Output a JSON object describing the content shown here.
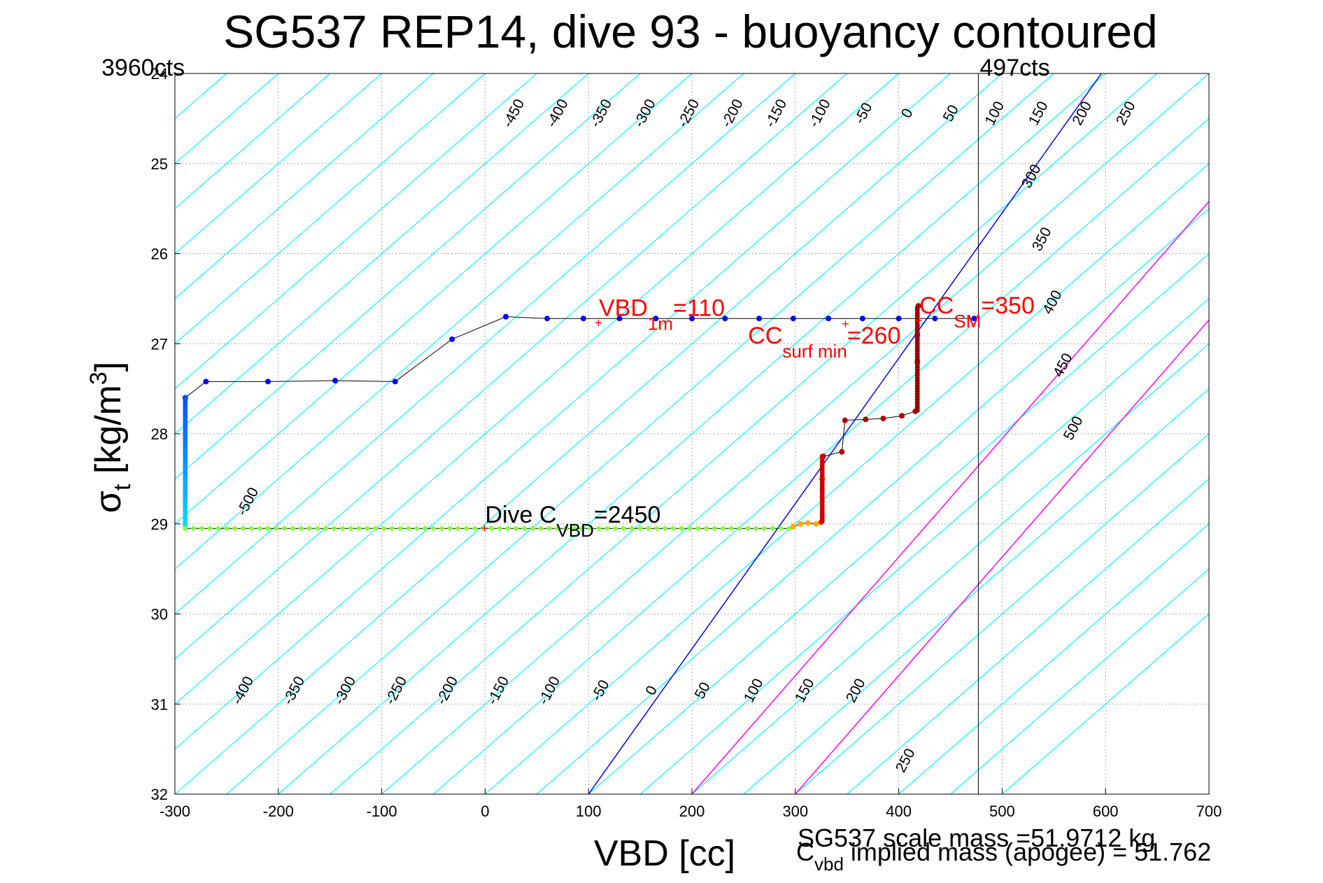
{
  "chart_data": {
    "type": "scatter",
    "title": "SG537 REP14, dive 93 - buoyancy contoured",
    "xlabel": "VBD [cc]",
    "ylabel": {
      "main": "σ",
      "sub": "t",
      "unit": " [kg/m",
      "sup": "3",
      "close": "]"
    },
    "xlim": [
      -300,
      700
    ],
    "ylim": [
      24,
      32
    ],
    "y_reversed": true,
    "x_ticks": [
      -300,
      -200,
      -100,
      0,
      100,
      200,
      300,
      400,
      500,
      600,
      700
    ],
    "y_ticks": [
      25,
      26,
      27,
      28,
      29,
      30,
      31,
      32
    ],
    "y_top_tick_label": "24",
    "grid": true,
    "colors": {
      "contour": "#00ffff",
      "zero_contour": "#0000ff",
      "highlight_contour": "#ff00ff",
      "annotation": "#ff0000",
      "profile_line": "#000000",
      "frame": "#000000",
      "grid": "#aaaaaa"
    },
    "contours": {
      "slope_cc_per_sigma": 100,
      "step": 50,
      "upper_labels": [
        "-450",
        "-400",
        "-350",
        "-300",
        "-250",
        "-200",
        "-150",
        "-100",
        "-50",
        "0",
        "50",
        "100",
        "150",
        "200",
        "250",
        "300",
        "350",
        "400",
        "450",
        "500"
      ],
      "lower_labels": [
        "-500",
        "-400",
        "-350",
        "-300",
        "-250",
        "-200",
        "-150",
        "-100",
        "-50",
        "0",
        "50",
        "100",
        "150",
        "200",
        "250"
      ],
      "highlighted": [
        150,
        200
      ]
    },
    "vertical_markers": [
      {
        "x": 477,
        "label": "497cts"
      }
    ],
    "left_corner_label": "3960cts",
    "profile": [
      {
        "x": -290,
        "y": 27.6
      },
      {
        "x": -270,
        "y": 27.42
      },
      {
        "x": -210,
        "y": 27.42
      },
      {
        "x": -145,
        "y": 27.41
      },
      {
        "x": -87,
        "y": 27.42
      },
      {
        "x": -32,
        "y": 26.95
      },
      {
        "x": 20,
        "y": 26.7
      },
      {
        "x": 60,
        "y": 26.72
      },
      {
        "x": 95,
        "y": 26.72
      },
      {
        "x": 130,
        "y": 26.72
      },
      {
        "x": 165,
        "y": 26.72
      },
      {
        "x": 200,
        "y": 26.72
      },
      {
        "x": 232,
        "y": 26.72
      },
      {
        "x": 265,
        "y": 26.72
      },
      {
        "x": 298,
        "y": 26.72
      },
      {
        "x": 332,
        "y": 26.72
      },
      {
        "x": 365,
        "y": 26.72
      },
      {
        "x": 400,
        "y": 26.72
      },
      {
        "x": 435,
        "y": 26.72
      },
      {
        "x": 473,
        "y": 26.72
      }
    ],
    "profile_dense_column": {
      "x": -290,
      "y_from": 27.6,
      "y_to": 29.05
    },
    "dive_bottom": {
      "x_from": -290,
      "x_to": 298,
      "y": 29.05,
      "step": 8
    },
    "climb_points": [
      {
        "x": 298,
        "y": 29.03
      },
      {
        "x": 305,
        "y": 29.0
      },
      {
        "x": 312,
        "y": 28.99
      },
      {
        "x": 320,
        "y": 29.0
      },
      {
        "x": 325,
        "y": 28.98
      },
      {
        "x": 326,
        "y": 28.5
      },
      {
        "x": 327,
        "y": 28.25
      },
      {
        "x": 345,
        "y": 28.2
      },
      {
        "x": 348,
        "y": 27.85
      },
      {
        "x": 368,
        "y": 27.84
      },
      {
        "x": 385,
        "y": 27.83
      },
      {
        "x": 403,
        "y": 27.8
      },
      {
        "x": 416,
        "y": 27.75
      },
      {
        "x": 418,
        "y": 27.2
      },
      {
        "x": 418,
        "y": 26.9
      },
      {
        "x": 419,
        "y": 26.58
      }
    ],
    "annotations": [
      {
        "x": 110,
        "y": 26.77,
        "text": "VBD",
        "sub": "1m",
        "rest": "=110"
      },
      {
        "x": 349,
        "y": 26.78,
        "text": "CC",
        "sub": "surf min",
        "rest": "=260"
      },
      {
        "x": 420,
        "y": 26.74,
        "text": "CC",
        "sub": "SM",
        "rest": "=350"
      },
      {
        "x": 0,
        "y": 29.05,
        "text": "Dive C",
        "sub": "VBD",
        "rest": "=2450"
      }
    ],
    "footer": {
      "line1": "SG537 scale mass =51.9712 kg",
      "line2_main": "C",
      "line2_sub": "vbd",
      "line2_rest": " implied mass (apogee) = 51.762"
    }
  }
}
